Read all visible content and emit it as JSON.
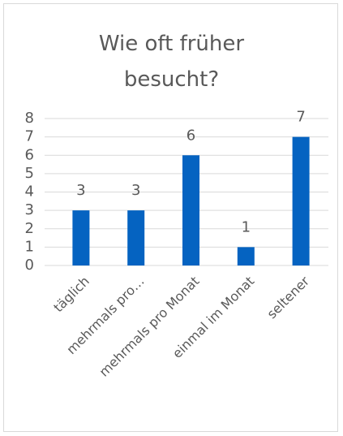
{
  "chart_data": {
    "type": "bar",
    "title": "Wie oft früher besucht?",
    "categories": [
      "täglich",
      "mehrmals pro…",
      "mehrmals pro Monat",
      "einmal im Monat",
      "seltener"
    ],
    "values": [
      3,
      3,
      6,
      1,
      7
    ],
    "color": "#0563c1",
    "ylim": [
      0,
      8
    ],
    "yticks": [
      0,
      1,
      2,
      3,
      4,
      5,
      6,
      7,
      8
    ],
    "grid": true,
    "data_labels": true
  }
}
